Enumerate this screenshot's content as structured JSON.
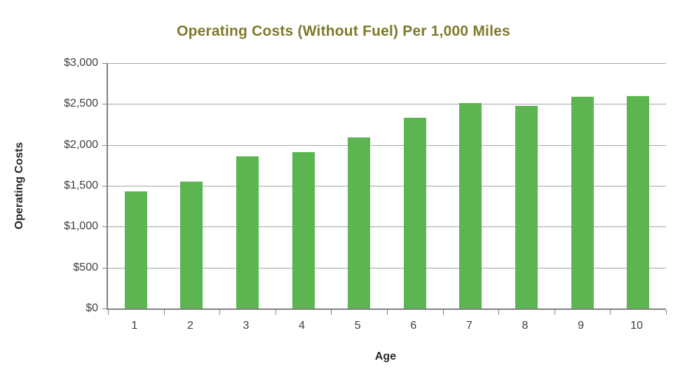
{
  "title": "Operating Costs (Without Fuel) Per 1,000 Miles",
  "chart_data": {
    "type": "bar",
    "title": "Operating Costs (Without Fuel) Per 1,000 Miles",
    "xlabel": "Age",
    "ylabel": "Operating Costs",
    "categories": [
      "1",
      "2",
      "3",
      "4",
      "5",
      "6",
      "7",
      "8",
      "9",
      "10"
    ],
    "values": [
      1430,
      1555,
      1860,
      1915,
      2090,
      2330,
      2510,
      2480,
      2585,
      2595
    ],
    "ylim": [
      0,
      3000
    ],
    "y_tick_step": 500,
    "y_tick_labels": [
      "$0",
      "$500",
      "$1,000",
      "$1,500",
      "$2,000",
      "$2,500",
      "$3,000"
    ],
    "grid": true,
    "legend": "none",
    "colors": {
      "bar": "#5CB551",
      "title": "#7E7A2A",
      "axis_text": "#3F3F3F",
      "gridline": "#A6A6A6",
      "axis_line": "#808080",
      "background": "#FFFFFF"
    }
  }
}
